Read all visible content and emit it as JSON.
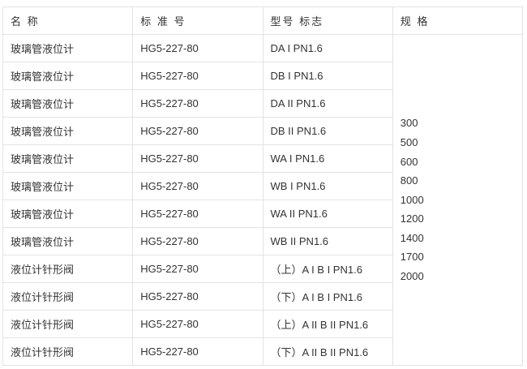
{
  "headers": [
    "名 称",
    "标 准 号",
    "型号 标志",
    "规 格"
  ],
  "rows": [
    {
      "name": "玻璃管液位计",
      "standard": "HG5-227-80",
      "model": "DA I PN1.6"
    },
    {
      "name": "玻璃管液位计",
      "standard": "HG5-227-80",
      "model": "DB I PN1.6"
    },
    {
      "name": "玻璃管液位计",
      "standard": "HG5-227-80",
      "model": "DA II PN1.6"
    },
    {
      "name": "玻璃管液位计",
      "standard": "HG5-227-80",
      "model": "DB II PN1.6"
    },
    {
      "name": "玻璃管液位计",
      "standard": "HG5-227-80",
      "model": "WA I PN1.6"
    },
    {
      "name": "玻璃管液位计",
      "standard": "HG5-227-80",
      "model": "WB I PN1.6"
    },
    {
      "name": "玻璃管液位计",
      "standard": "HG5-227-80",
      "model": "WA II PN1.6"
    },
    {
      "name": "玻璃管液位计",
      "standard": "HG5-227-80",
      "model": "WB II PN1.6"
    },
    {
      "name": "液位计针形阀",
      "standard": "HG5-227-80",
      "model": "（上）A I B I PN1.6"
    },
    {
      "name": "液位计针形阀",
      "standard": "HG5-227-80",
      "model": "（下）A I B I PN1.6"
    },
    {
      "name": "液位计针形阀",
      "standard": "HG5-227-80",
      "model": "（上）A II B II PN1.6"
    },
    {
      "name": "液位计针形阀",
      "standard": "HG5-227-80",
      "model": "（下）A II B II PN1.6"
    }
  ],
  "specs": [
    "300",
    "500",
    "600",
    "800",
    "1000",
    "1200",
    "1400",
    "1700",
    "2000"
  ]
}
